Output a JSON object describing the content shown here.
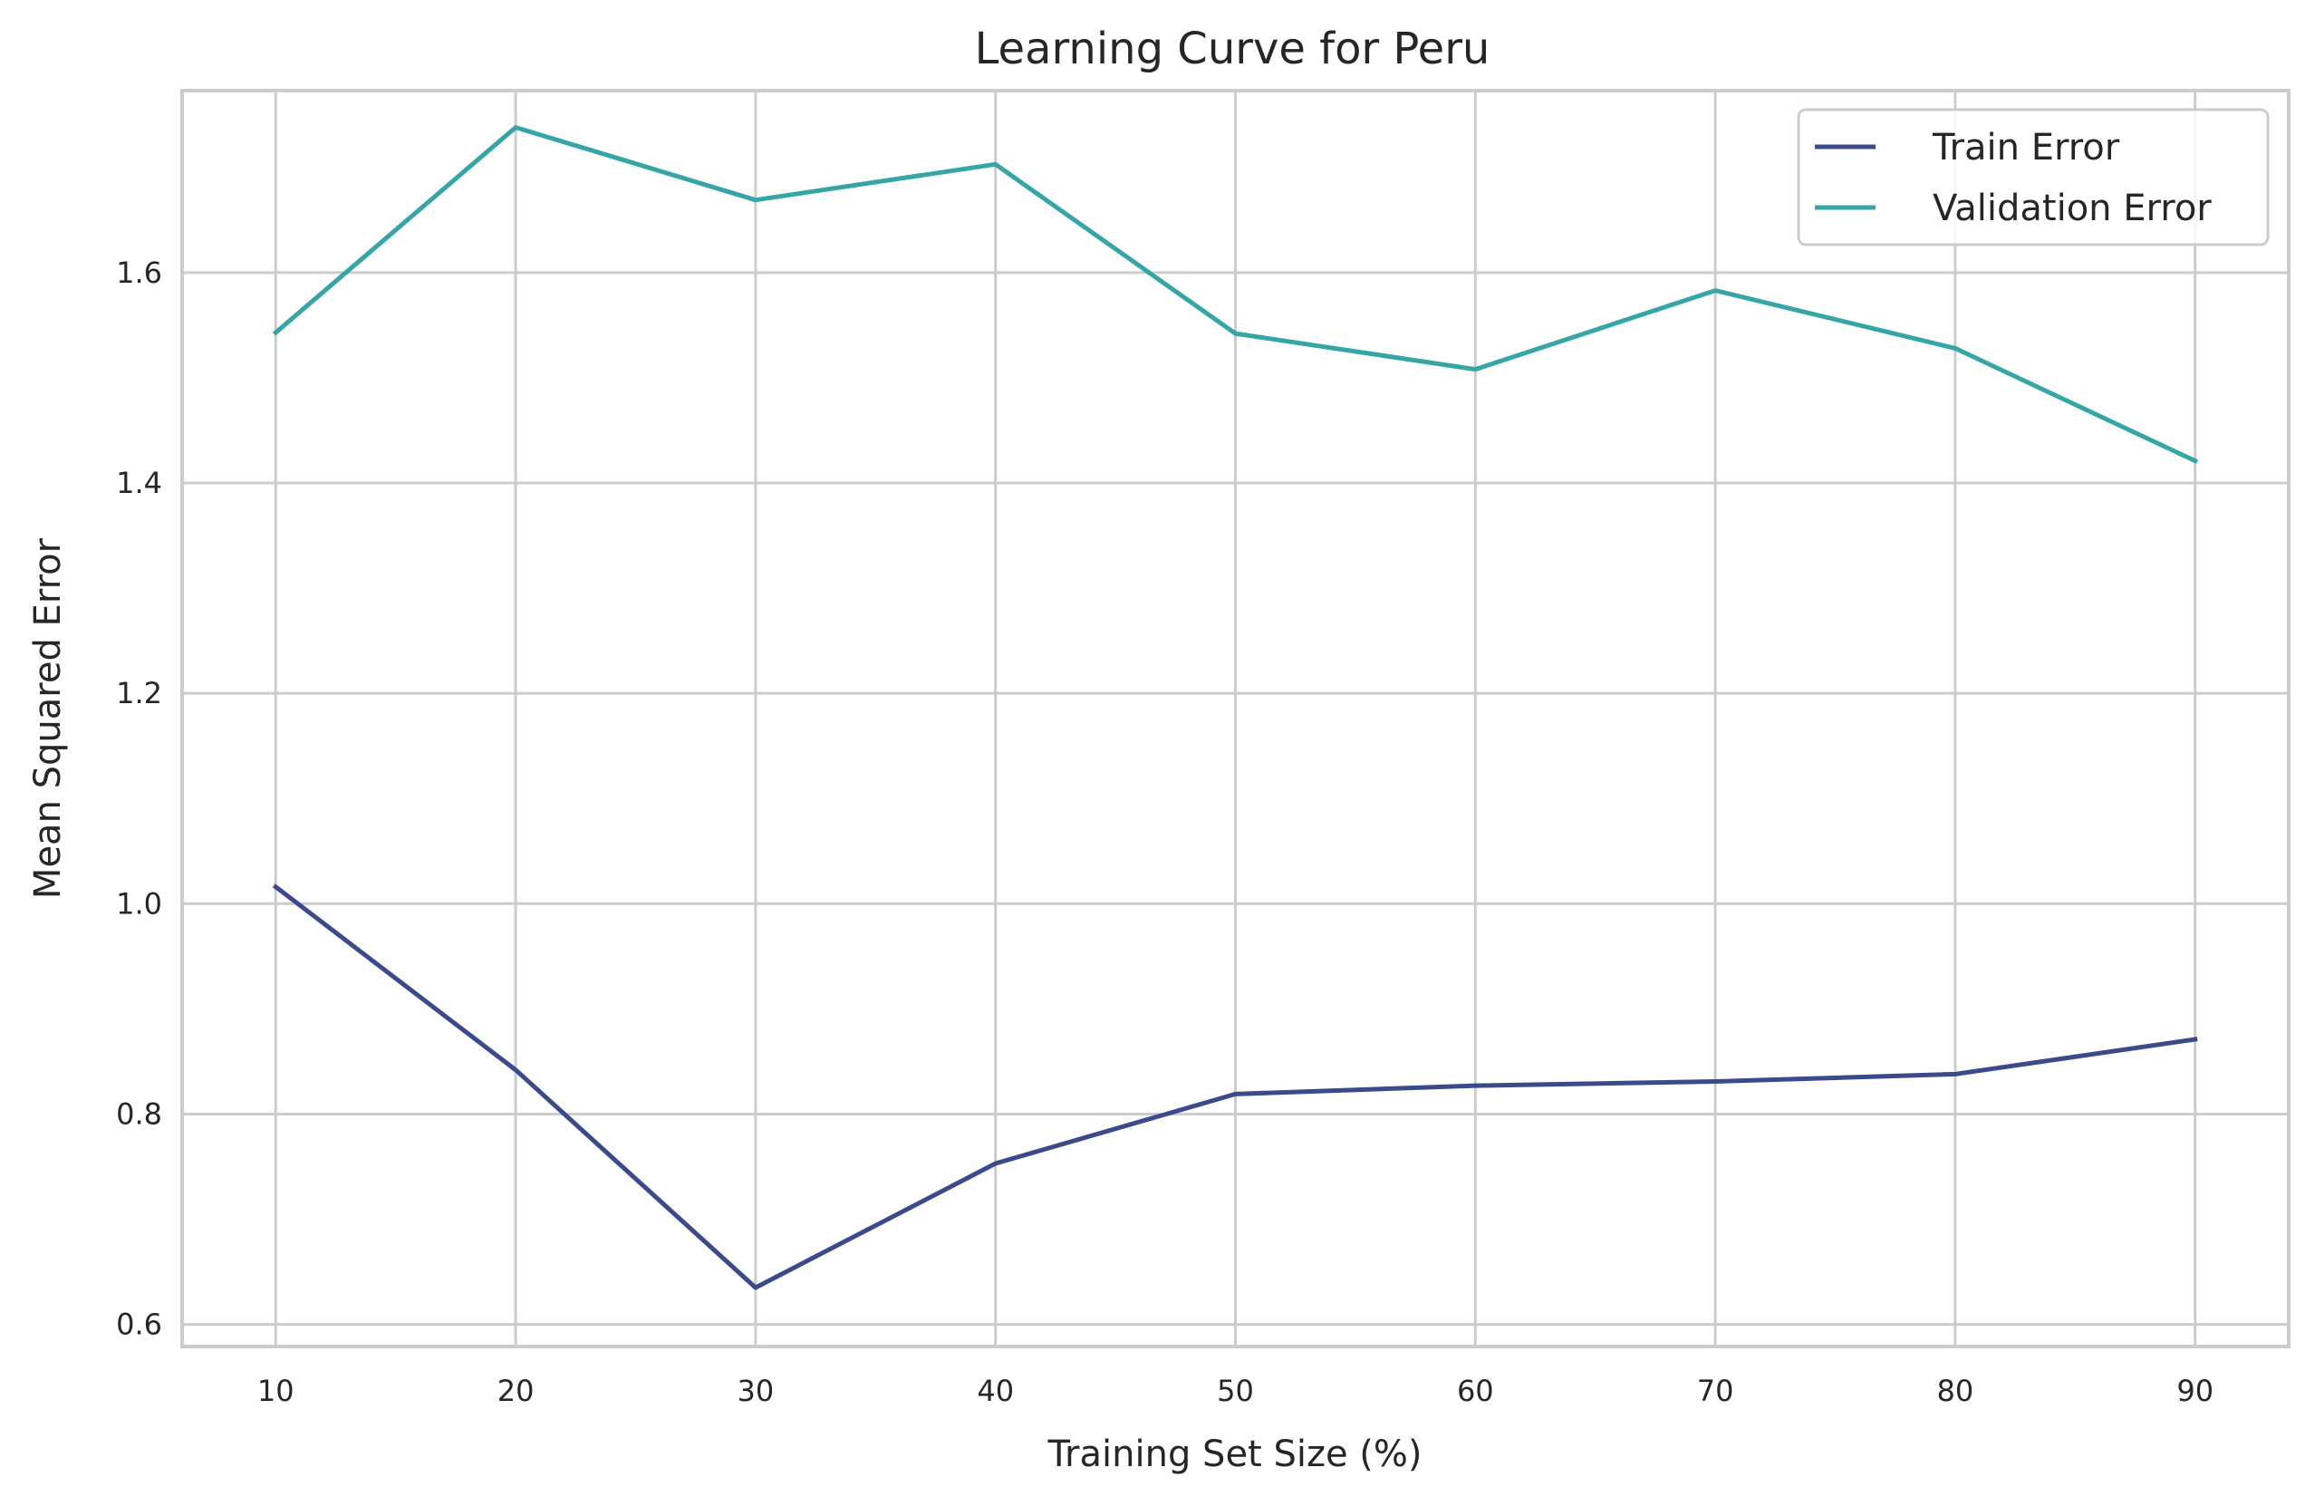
{
  "chart_data": {
    "type": "line",
    "title": "Learning Curve for Peru",
    "xlabel": "Training Set Size (%)",
    "ylabel": "Mean Squared Error",
    "x": [
      10,
      20,
      30,
      40,
      50,
      60,
      70,
      80,
      90
    ],
    "xticks": [
      "10",
      "20",
      "30",
      "40",
      "50",
      "60",
      "70",
      "80",
      "90"
    ],
    "yticks": [
      "0.6",
      "0.8",
      "1.0",
      "1.2",
      "1.4",
      "1.6"
    ],
    "xlim": [
      6.1,
      93.9
    ],
    "ylim": [
      0.579,
      1.773
    ],
    "grid": true,
    "legend_position": "upper right",
    "series": [
      {
        "name": "Train Error",
        "color": "#3b4a8b",
        "values": [
          1.016,
          0.842,
          0.635,
          0.753,
          0.819,
          0.827,
          0.831,
          0.838,
          0.871
        ]
      },
      {
        "name": "Validation Error",
        "color": "#36a5a8",
        "values": [
          1.543,
          1.738,
          1.669,
          1.703,
          1.542,
          1.508,
          1.583,
          1.528,
          1.421
        ]
      }
    ]
  }
}
